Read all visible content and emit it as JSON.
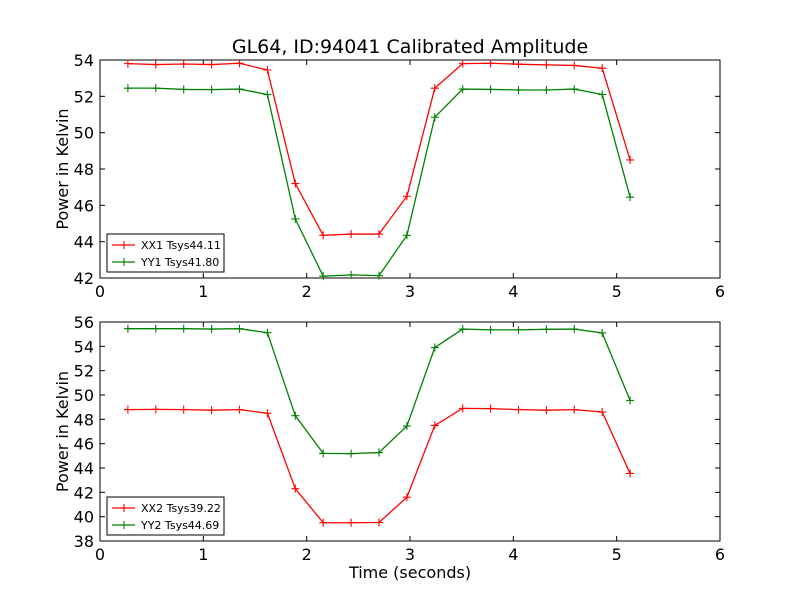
{
  "figure": {
    "title": "GL64, ID:94041 Calibrated Amplitude"
  },
  "colors": {
    "red": "#ff0000",
    "green": "#008000",
    "axes": "#000000",
    "background": "#ffffff"
  },
  "chart_data": [
    {
      "type": "line",
      "title": "GL64, ID:94041 Calibrated Amplitude",
      "xlabel": "",
      "ylabel": "Power in Kelvin",
      "xlim": [
        0,
        6
      ],
      "ylim": [
        42,
        54
      ],
      "xticks": [
        0,
        1,
        2,
        3,
        4,
        5,
        6
      ],
      "yticks": [
        42,
        44,
        46,
        48,
        50,
        52,
        54
      ],
      "grid": false,
      "legend_position": "lower-left",
      "x": [
        0.27,
        0.54,
        0.81,
        1.08,
        1.35,
        1.62,
        1.89,
        2.16,
        2.43,
        2.7,
        2.97,
        3.24,
        3.51,
        3.78,
        4.05,
        4.32,
        4.59,
        4.86,
        5.13
      ],
      "series": [
        {
          "name": "XX1 Tsys44.11",
          "color": "#ff0000",
          "values": [
            53.8,
            53.75,
            53.78,
            53.75,
            53.82,
            53.45,
            47.2,
            44.35,
            44.42,
            44.42,
            46.5,
            52.45,
            53.8,
            53.82,
            53.77,
            53.73,
            53.7,
            53.55,
            48.5
          ]
        },
        {
          "name": "YY1 Tsys41.80",
          "color": "#008000",
          "values": [
            52.45,
            52.45,
            52.38,
            52.37,
            52.4,
            52.1,
            45.25,
            42.1,
            42.17,
            42.13,
            44.35,
            50.85,
            52.4,
            52.38,
            52.35,
            52.35,
            52.4,
            52.1,
            46.45
          ]
        }
      ]
    },
    {
      "type": "line",
      "title": "",
      "xlabel": "Time (seconds)",
      "ylabel": "Power in Kelvin",
      "xlim": [
        0,
        6
      ],
      "ylim": [
        38,
        56
      ],
      "xticks": [
        0,
        1,
        2,
        3,
        4,
        5,
        6
      ],
      "yticks": [
        38,
        40,
        42,
        44,
        46,
        48,
        50,
        52,
        54,
        56
      ],
      "grid": false,
      "legend_position": "lower-left",
      "x": [
        0.27,
        0.54,
        0.81,
        1.08,
        1.35,
        1.62,
        1.89,
        2.16,
        2.43,
        2.7,
        2.97,
        3.24,
        3.51,
        3.78,
        4.05,
        4.32,
        4.59,
        4.86,
        5.13
      ],
      "series": [
        {
          "name": "XX2 Tsys39.22",
          "color": "#ff0000",
          "values": [
            48.8,
            48.82,
            48.8,
            48.75,
            48.8,
            48.5,
            42.3,
            39.5,
            39.5,
            39.52,
            41.6,
            47.5,
            48.9,
            48.88,
            48.8,
            48.75,
            48.8,
            48.6,
            43.55
          ]
        },
        {
          "name": "YY2 Tsys44.69",
          "color": "#008000",
          "values": [
            55.45,
            55.45,
            55.45,
            55.42,
            55.45,
            55.12,
            48.3,
            45.2,
            45.18,
            45.27,
            47.45,
            53.9,
            55.42,
            55.35,
            55.35,
            55.4,
            55.42,
            55.1,
            49.55
          ]
        }
      ]
    }
  ]
}
